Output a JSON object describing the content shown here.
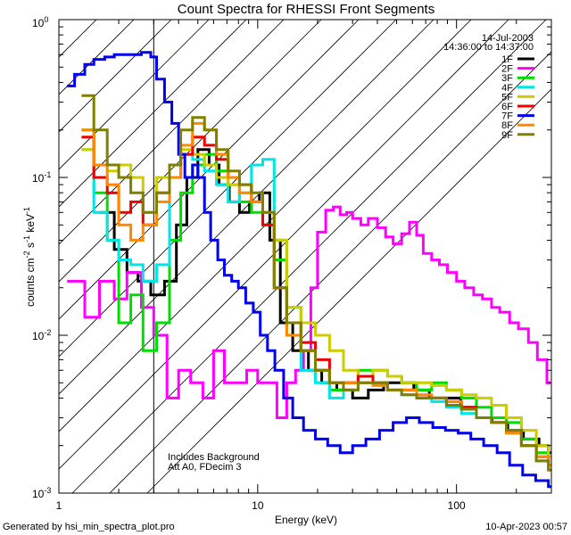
{
  "chart_data": {
    "type": "line",
    "title": "Count Spectra for RHESSI Front Segments",
    "xlabel": "Energy (keV)",
    "ylabel": "counts cm-2 s-1 keV-1",
    "xscale": "log",
    "yscale": "log",
    "xlim": [
      1,
      300
    ],
    "ylim": [
      0.001,
      1
    ],
    "x_ticks": [
      {
        "value": 1,
        "label": "1"
      },
      {
        "value": 10,
        "label": "10"
      },
      {
        "value": 100,
        "label": "100"
      }
    ],
    "y_ticks": [
      {
        "value": 1,
        "label": "10",
        "exp": "0"
      },
      {
        "value": 0.1,
        "label": "10",
        "exp": "-1"
      },
      {
        "value": 0.01,
        "label": "10",
        "exp": "-2"
      },
      {
        "value": 0.001,
        "label": "10",
        "exp": "-3"
      }
    ],
    "hatch_region": [
      1,
      3
    ],
    "legend_position": "top-right",
    "date": "14-Jul-2003",
    "time_range": "14:36:00 to 14:37:00",
    "annotations": [
      "Includes Background",
      "Att A0, FDecim 3"
    ],
    "series": [
      {
        "name": "1F",
        "color": "#000000",
        "x": [
          1.6,
          1.9,
          2.2,
          2.5,
          2.9,
          3.4,
          3.9,
          4.4,
          5.0,
          5.7,
          6.4,
          7.2,
          8.1,
          9.1,
          10.2,
          11.5,
          13,
          15,
          18,
          21,
          25,
          30,
          36,
          43,
          51,
          61,
          73,
          88,
          105,
          126,
          151,
          181,
          217,
          260,
          290
        ],
        "y": [
          0.06,
          0.035,
          0.025,
          0.022,
          0.018,
          0.022,
          0.05,
          0.1,
          0.15,
          0.12,
          0.09,
          0.07,
          0.06,
          0.07,
          0.08,
          0.04,
          0.012,
          0.008,
          0.006,
          0.005,
          0.0045,
          0.004,
          0.0045,
          0.005,
          0.005,
          0.0045,
          0.004,
          0.004,
          0.0035,
          0.003,
          0.0028,
          0.0025,
          0.0022,
          0.002,
          0.0018
        ]
      },
      {
        "name": "2F",
        "color": "#ff00ff",
        "x": [
          1.1,
          1.2,
          1.35,
          1.6,
          1.9,
          2.2,
          2.6,
          3.0,
          3.5,
          4.0,
          4.6,
          5.3,
          6.0,
          6.8,
          7.7,
          8.8,
          10,
          11.2,
          12.5,
          14,
          15.5,
          17,
          18.5,
          20,
          22,
          24,
          26,
          28,
          30,
          33,
          36,
          40,
          44,
          48,
          53,
          58,
          63,
          68,
          75,
          82,
          90,
          100,
          110,
          122,
          135,
          150,
          165,
          185,
          205,
          230,
          255,
          285
        ],
        "y": [
          0.022,
          0.022,
          0.013,
          0.022,
          0.017,
          0.025,
          0.015,
          0.01,
          0.004,
          0.006,
          0.005,
          0.004,
          0.008,
          0.005,
          0.005,
          0.006,
          0.005,
          0.005,
          0.003,
          0.005,
          0.006,
          0.008,
          0.02,
          0.045,
          0.062,
          0.065,
          0.058,
          0.06,
          0.055,
          0.05,
          0.055,
          0.048,
          0.042,
          0.038,
          0.044,
          0.052,
          0.043,
          0.033,
          0.03,
          0.028,
          0.025,
          0.022,
          0.02,
          0.018,
          0.017,
          0.015,
          0.014,
          0.012,
          0.011,
          0.009,
          0.007,
          0.005
        ]
      },
      {
        "name": "3F",
        "color": "#00dd00",
        "x": [
          1.3,
          1.5,
          1.75,
          2.0,
          2.3,
          2.65,
          3.1,
          3.6,
          4.1,
          4.7,
          5.4,
          6.2,
          7.1,
          8.1,
          9.3,
          10.6,
          12.1,
          14,
          16.5,
          19.5,
          23,
          27,
          32,
          38,
          45,
          53,
          63,
          75,
          89,
          106,
          126,
          150,
          178,
          212,
          252,
          290
        ],
        "y": [
          0.2,
          0.08,
          0.04,
          0.012,
          0.018,
          0.008,
          0.012,
          0.04,
          0.08,
          0.12,
          0.14,
          0.11,
          0.09,
          0.07,
          0.06,
          0.05,
          0.03,
          0.01,
          0.008,
          0.006,
          0.0045,
          0.005,
          0.006,
          0.006,
          0.0055,
          0.005,
          0.0045,
          0.005,
          0.0045,
          0.004,
          0.0035,
          0.003,
          0.0028,
          0.0022,
          0.0018,
          0.0015
        ]
      },
      {
        "name": "4F",
        "color": "#00e5e5",
        "x": [
          1.3,
          1.5,
          1.75,
          2.0,
          2.3,
          2.65,
          3.1,
          3.6,
          4.1,
          4.7,
          5.4,
          6.2,
          7.1,
          8.1,
          9.3,
          10.6,
          12.1,
          14,
          16.5,
          19.5,
          23,
          27,
          32,
          38,
          45,
          53,
          63,
          75,
          89,
          106,
          126,
          150,
          178,
          212,
          252,
          290
        ],
        "y": [
          0.15,
          0.06,
          0.04,
          0.03,
          0.028,
          0.022,
          0.028,
          0.12,
          0.14,
          0.13,
          0.11,
          0.09,
          0.07,
          0.08,
          0.12,
          0.13,
          0.04,
          0.015,
          0.006,
          0.005,
          0.004,
          0.0045,
          0.005,
          0.005,
          0.0045,
          0.0042,
          0.004,
          0.0038,
          0.0035,
          0.0032,
          0.003,
          0.0028,
          0.0025,
          0.002,
          0.0016,
          0.0014
        ]
      },
      {
        "name": "5F",
        "color": "#cccc00",
        "x": [
          1.3,
          1.5,
          1.75,
          2.0,
          2.3,
          2.65,
          3.1,
          3.6,
          4.1,
          4.7,
          5.4,
          6.2,
          7.1,
          8.1,
          9.3,
          10.6,
          12.1,
          14,
          16.5,
          19.5,
          23,
          27,
          32,
          38,
          45,
          53,
          63,
          75,
          89,
          106,
          126,
          150,
          178,
          212,
          252,
          290
        ],
        "y": [
          0.15,
          0.12,
          0.11,
          0.12,
          0.1,
          0.06,
          0.1,
          0.12,
          0.15,
          0.14,
          0.12,
          0.1,
          0.09,
          0.08,
          0.07,
          0.06,
          0.04,
          0.015,
          0.012,
          0.01,
          0.008,
          0.006,
          0.0055,
          0.006,
          0.0055,
          0.005,
          0.005,
          0.0048,
          0.0045,
          0.0042,
          0.004,
          0.0036,
          0.003,
          0.0025,
          0.002,
          0.0017
        ]
      },
      {
        "name": "6F",
        "color": "#ee0000",
        "x": [
          1.3,
          1.5,
          1.75,
          2.0,
          2.3,
          2.65,
          3.1,
          3.6,
          4.1,
          4.7,
          5.4,
          6.2,
          7.1,
          8.1,
          9.3,
          10.6,
          12.1,
          14,
          16.5,
          19.5,
          23,
          27,
          32,
          38,
          45,
          53,
          63,
          75,
          89,
          106,
          126,
          150,
          178,
          212,
          252,
          290
        ],
        "y": [
          0.18,
          0.1,
          0.08,
          0.06,
          0.07,
          0.05,
          0.08,
          0.1,
          0.14,
          0.18,
          0.16,
          0.13,
          0.1,
          0.09,
          0.07,
          0.05,
          0.02,
          0.012,
          0.009,
          0.007,
          0.005,
          0.005,
          0.0055,
          0.005,
          0.0045,
          0.0045,
          0.004,
          0.004,
          0.0038,
          0.0035,
          0.003,
          0.0028,
          0.0025,
          0.002,
          0.0017,
          0.0015
        ]
      },
      {
        "name": "7F",
        "color": "#0000ee",
        "x": [
          1.1,
          1.2,
          1.35,
          1.5,
          1.7,
          1.9,
          2.1,
          2.35,
          2.6,
          2.9,
          3.1,
          3.4,
          3.7,
          4.0,
          4.3,
          4.7,
          5.0,
          5.4,
          5.8,
          6.3,
          6.8,
          7.4,
          8.0,
          8.7,
          9.5,
          10.3,
          11.2,
          12.2,
          13.5,
          15,
          17,
          19.5,
          22.5,
          26,
          30,
          35,
          41,
          48,
          56,
          65,
          76,
          88,
          102,
          118,
          137,
          160,
          185,
          215,
          250,
          290
        ],
        "y": [
          0.38,
          0.45,
          0.52,
          0.56,
          0.58,
          0.6,
          0.6,
          0.6,
          0.62,
          0.58,
          0.42,
          0.3,
          0.22,
          0.14,
          0.1,
          0.12,
          0.1,
          0.06,
          0.04,
          0.03,
          0.024,
          0.022,
          0.02,
          0.016,
          0.014,
          0.01,
          0.008,
          0.006,
          0.004,
          0.003,
          0.0025,
          0.0022,
          0.002,
          0.0018,
          0.002,
          0.0022,
          0.0025,
          0.0028,
          0.003,
          0.0028,
          0.0026,
          0.0025,
          0.0024,
          0.0022,
          0.002,
          0.0018,
          0.0015,
          0.0013,
          0.0012,
          0.0011
        ]
      },
      {
        "name": "8F",
        "color": "#ff8800",
        "x": [
          1.3,
          1.5,
          1.75,
          2.0,
          2.3,
          2.65,
          3.1,
          3.6,
          4.1,
          4.7,
          5.4,
          6.2,
          7.1,
          8.1,
          9.3,
          10.6,
          12.1,
          14,
          16.5,
          19.5,
          23,
          27,
          32,
          38,
          45,
          53,
          63,
          75,
          89,
          106,
          126,
          150,
          178,
          212,
          252,
          290
        ],
        "y": [
          0.2,
          0.12,
          0.09,
          0.05,
          0.04,
          0.05,
          0.07,
          0.1,
          0.16,
          0.22,
          0.2,
          0.14,
          0.1,
          0.08,
          0.07,
          0.06,
          0.02,
          0.01,
          0.008,
          0.006,
          0.005,
          0.005,
          0.005,
          0.0048,
          0.0045,
          0.0045,
          0.0042,
          0.004,
          0.0038,
          0.0034,
          0.003,
          0.0028,
          0.0024,
          0.002,
          0.0017,
          0.0015
        ]
      },
      {
        "name": "9F",
        "color": "#808000",
        "x": [
          1.3,
          1.5,
          1.75,
          2.0,
          2.3,
          2.65,
          3.1,
          3.6,
          4.1,
          4.7,
          5.4,
          6.2,
          7.1,
          8.1,
          9.3,
          10.6,
          12.1,
          14,
          16.5,
          19.5,
          23,
          27,
          32,
          38,
          45,
          53,
          63,
          75,
          89,
          106,
          126,
          150,
          178,
          212,
          252,
          290
        ],
        "y": [
          0.33,
          0.2,
          0.12,
          0.1,
          0.08,
          0.06,
          0.08,
          0.12,
          0.2,
          0.24,
          0.2,
          0.15,
          0.11,
          0.09,
          0.08,
          0.06,
          0.02,
          0.012,
          0.008,
          0.006,
          0.005,
          0.0045,
          0.005,
          0.005,
          0.0045,
          0.0042,
          0.004,
          0.004,
          0.0036,
          0.0034,
          0.003,
          0.0028,
          0.0025,
          0.002,
          0.0016,
          0.0014
        ]
      }
    ]
  },
  "footer": {
    "generated_by": "Generated by hsi_min_spectra_plot.pro",
    "timestamp": "10-Apr-2023 00:57"
  }
}
